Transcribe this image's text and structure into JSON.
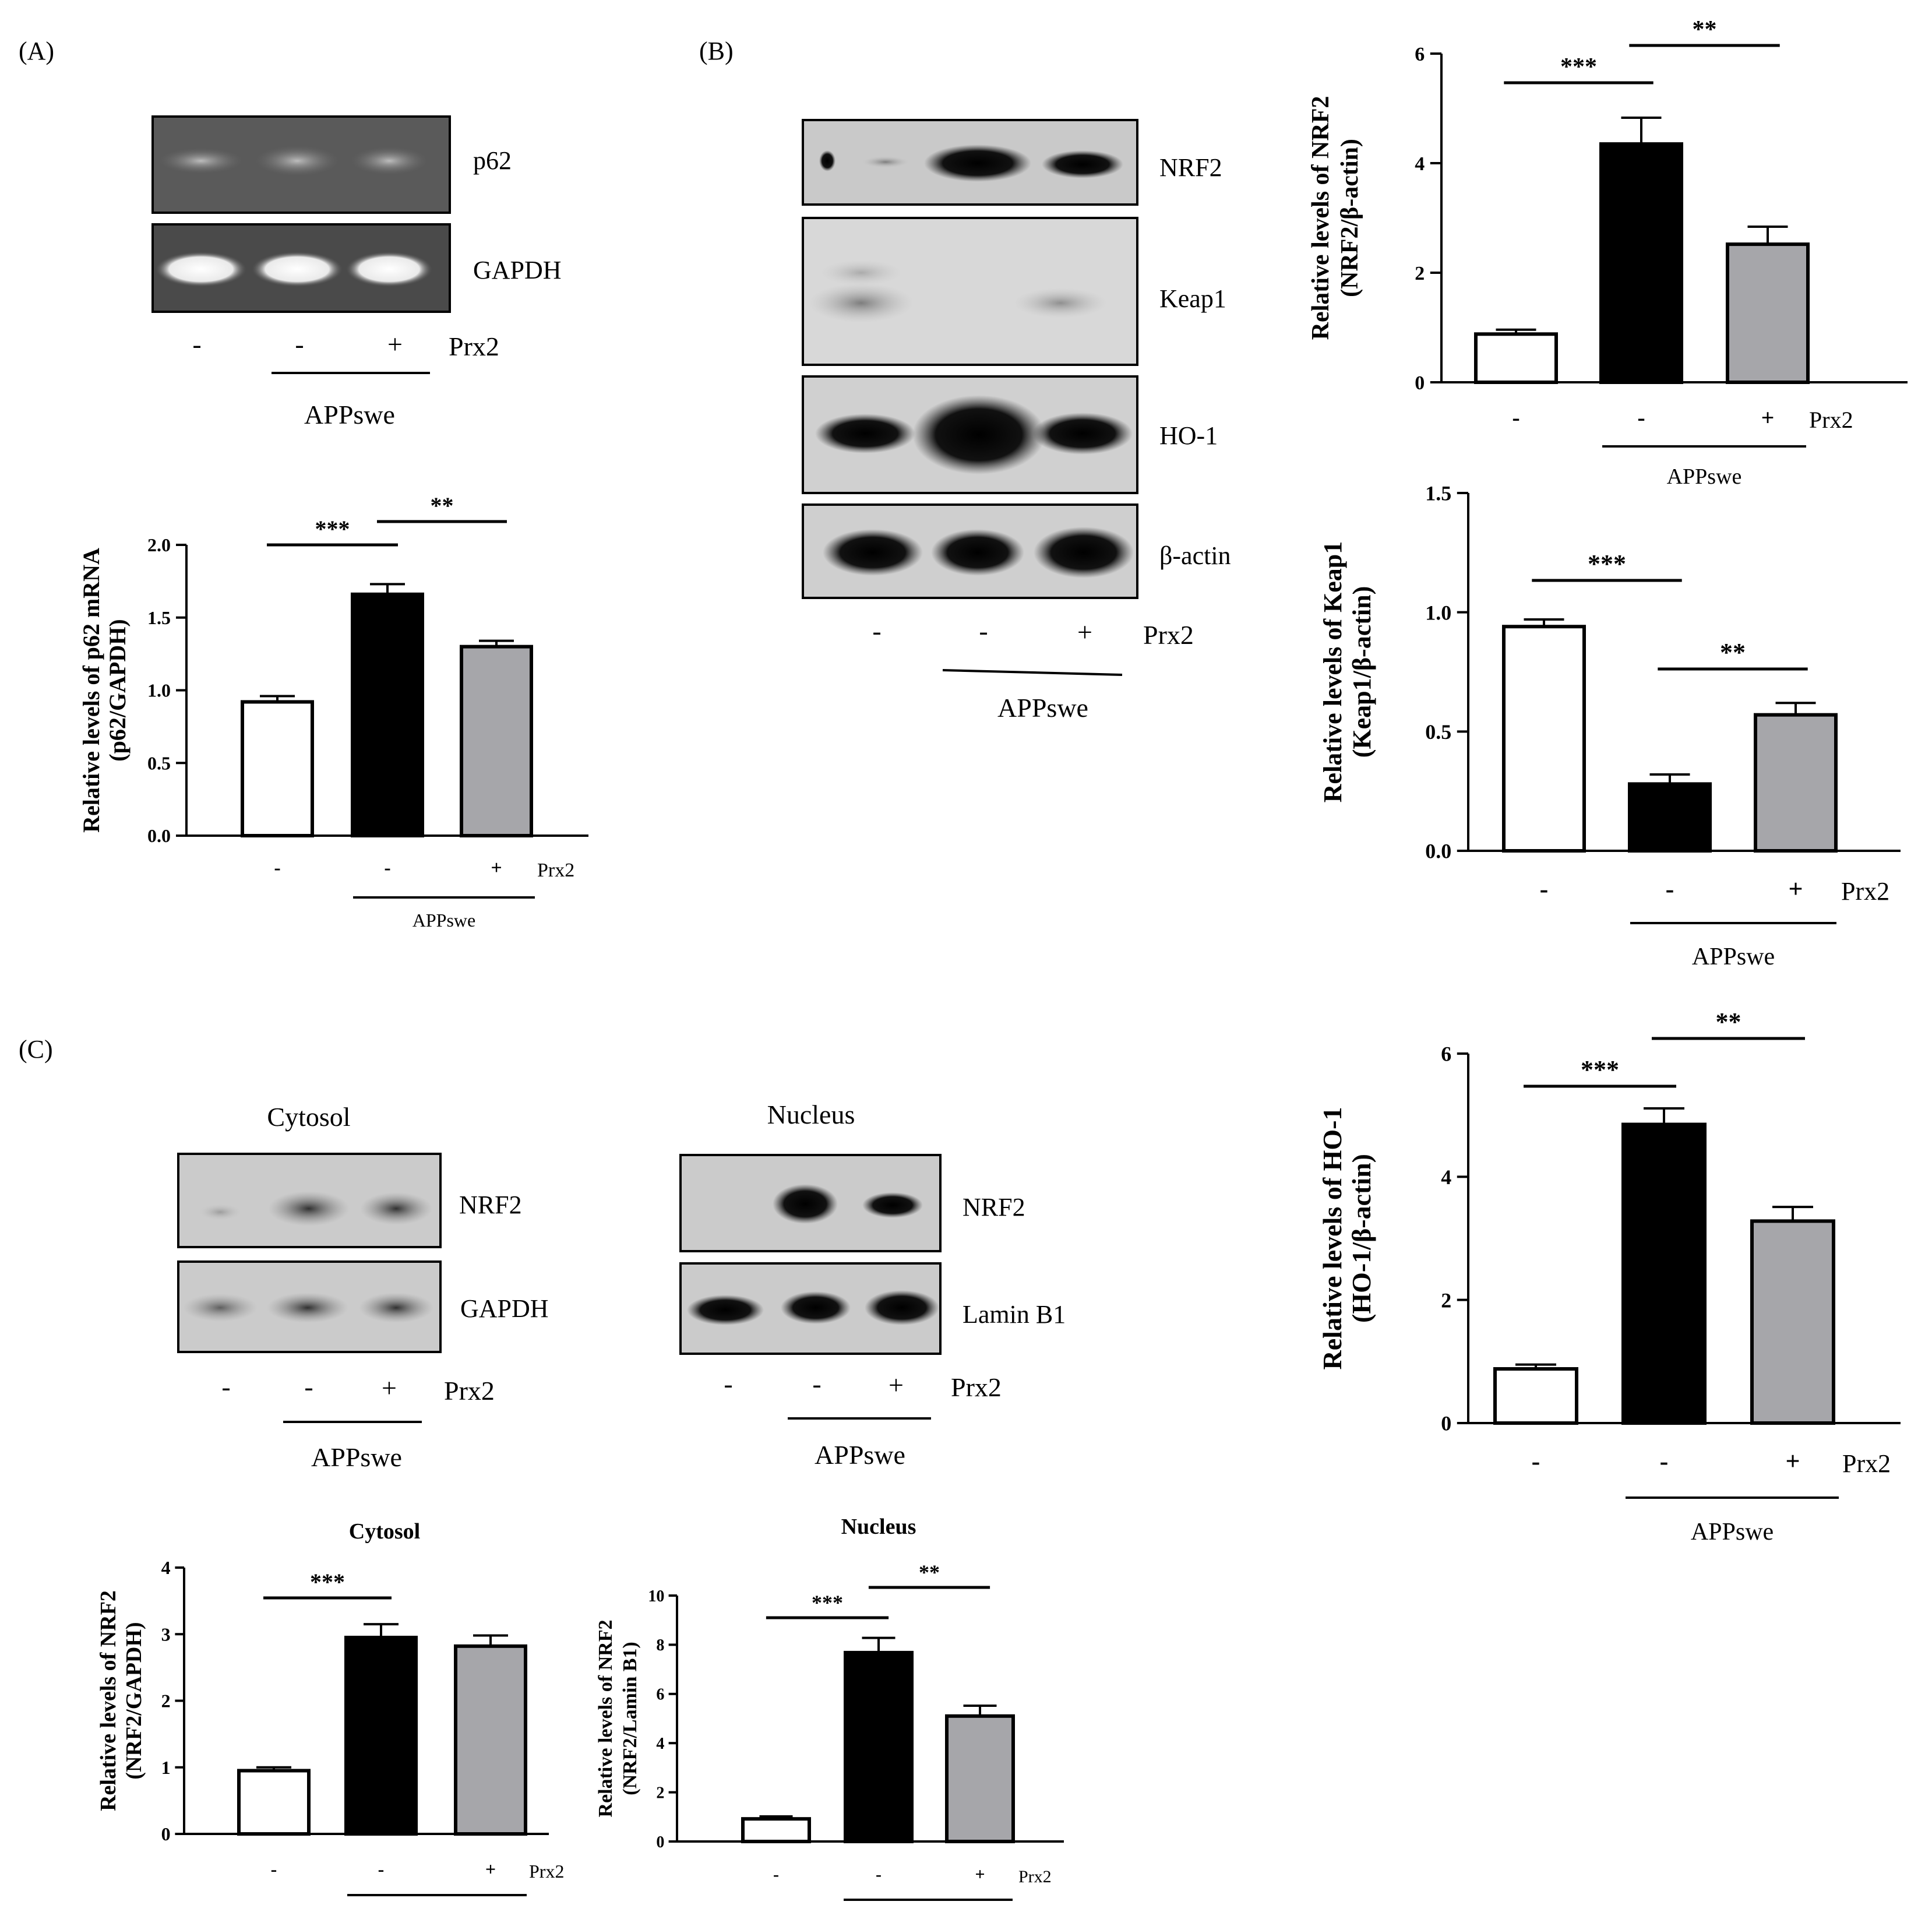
{
  "panels": {
    "A": "(A)",
    "B": "(B)",
    "C": "(C)"
  },
  "treatment": {
    "minus": "-",
    "plus": "+",
    "prx2": "Prx2",
    "appswe": "APPswe"
  },
  "blots": {
    "a_p62": "p62",
    "a_gapdh": "GAPDH",
    "b_nrf2": "NRF2",
    "b_keap1": "Keap1",
    "b_ho1": "HO-1",
    "b_actin": "β-actin",
    "c_cytosol_title": "Cytosol",
    "c_nucleus_title": "Nucleus",
    "c_cyto_nrf2": "NRF2",
    "c_cyto_gapdh": "GAPDH",
    "c_nuc_nrf2": "NRF2",
    "c_nuc_lamin": "Lamin B1"
  },
  "colors": {
    "ctrl": "#ffffff",
    "appswe": "#000000",
    "prx2": "#a6a6aa"
  },
  "chart_data": [
    {
      "id": "p62",
      "type": "bar",
      "ylabel": "Relative levels of p62 mRNA",
      "ylabel2": "(p62/GAPDH)",
      "ylim": [
        0,
        2.0
      ],
      "yticks": [
        0.0,
        0.5,
        1.0,
        1.5,
        2.0
      ],
      "tick_labels": [
        "0.0",
        "0.5",
        "1.0",
        "1.5",
        "2.0"
      ],
      "values": [
        0.92,
        1.66,
        1.3
      ],
      "errors": [
        0.04,
        0.07,
        0.04
      ],
      "significance": [
        {
          "from": 0,
          "to": 1,
          "label": "***"
        },
        {
          "from": 1,
          "to": 2,
          "label": "**"
        }
      ]
    },
    {
      "id": "nrf2",
      "type": "bar",
      "ylabel": "Relative levels of NRF2",
      "ylabel2": "(NRF2/β-actin)",
      "ylim": [
        0,
        6
      ],
      "yticks": [
        0,
        2,
        4,
        6
      ],
      "tick_labels": [
        "0",
        "2",
        "4",
        "6"
      ],
      "values": [
        0.88,
        4.35,
        2.52
      ],
      "errors": [
        0.08,
        0.48,
        0.32
      ],
      "significance": [
        {
          "from": 0,
          "to": 1,
          "label": "***"
        },
        {
          "from": 1,
          "to": 2,
          "label": "**"
        }
      ]
    },
    {
      "id": "keap1",
      "type": "bar",
      "ylabel": "Relative levels of Keap1",
      "ylabel2": "(Keap1/β-actin)",
      "ylim": [
        0,
        1.5
      ],
      "yticks": [
        0.0,
        0.5,
        1.0,
        1.5
      ],
      "tick_labels": [
        "0.0",
        "0.5",
        "1.0",
        "1.5"
      ],
      "values": [
        0.94,
        0.28,
        0.57
      ],
      "errors": [
        0.03,
        0.04,
        0.05
      ],
      "significance": [
        {
          "from": 0,
          "to": 1,
          "label": "***"
        },
        {
          "from": 1,
          "to": 2,
          "label": "**"
        }
      ]
    },
    {
      "id": "ho1",
      "type": "bar",
      "ylabel": "Relative levels of HO-1",
      "ylabel2": "(HO-1/β-actin)",
      "ylim": [
        0,
        6
      ],
      "yticks": [
        0,
        2,
        4,
        6
      ],
      "tick_labels": [
        "0",
        "2",
        "4",
        "6"
      ],
      "values": [
        0.88,
        4.85,
        3.28
      ],
      "errors": [
        0.07,
        0.26,
        0.23
      ],
      "significance": [
        {
          "from": 0,
          "to": 1,
          "label": "***"
        },
        {
          "from": 1,
          "to": 2,
          "label": "**"
        }
      ]
    },
    {
      "id": "cytosol",
      "type": "bar",
      "title": "Cytosol",
      "ylabel": "Relative levels of NRF2",
      "ylabel2": "(NRF2/GAPDH)",
      "ylim": [
        0,
        4
      ],
      "yticks": [
        0,
        1,
        2,
        3,
        4
      ],
      "tick_labels": [
        "0",
        "1",
        "2",
        "3",
        "4"
      ],
      "values": [
        0.95,
        2.95,
        2.82
      ],
      "errors": [
        0.05,
        0.2,
        0.16
      ],
      "significance": [
        {
          "from": 0,
          "to": 1,
          "label": "***"
        }
      ]
    },
    {
      "id": "nucleus",
      "type": "bar",
      "title": "Nucleus",
      "ylabel": "Relative levels of NRF2",
      "ylabel2": "(NRF2/Lamin B1)",
      "ylim": [
        0,
        10
      ],
      "yticks": [
        0,
        2,
        4,
        6,
        8,
        10
      ],
      "tick_labels": [
        "0",
        "2",
        "4",
        "6",
        "8",
        "10"
      ],
      "values": [
        0.92,
        7.68,
        5.1
      ],
      "errors": [
        0.1,
        0.6,
        0.42
      ],
      "significance": [
        {
          "from": 0,
          "to": 1,
          "label": "***"
        },
        {
          "from": 1,
          "to": 2,
          "label": "**"
        }
      ]
    }
  ]
}
